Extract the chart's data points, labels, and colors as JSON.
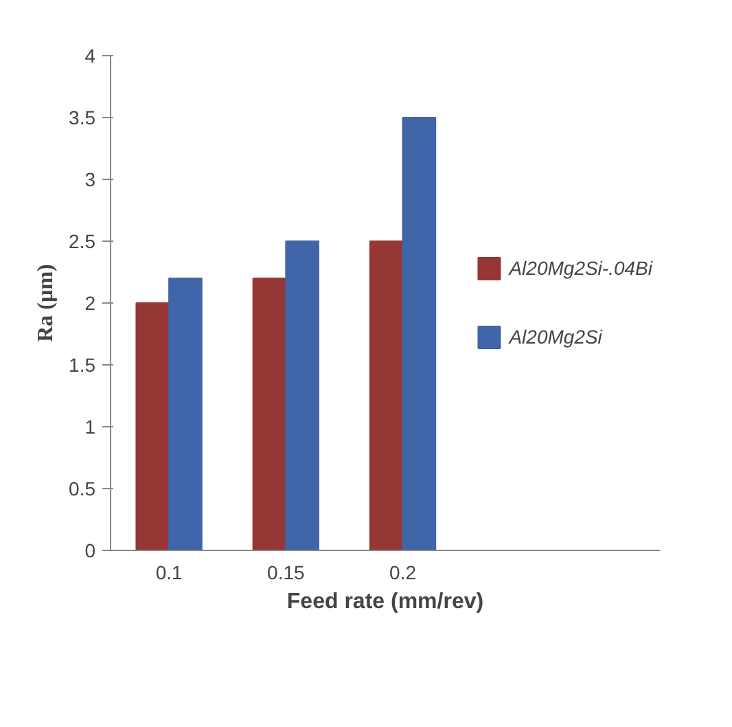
{
  "chart_data": {
    "type": "bar",
    "xlabel": "Feed rate (mm/rev)",
    "ylabel": "Ra (µm)",
    "categories": [
      "0.1",
      "0.15",
      "0.2"
    ],
    "series": [
      {
        "name": "Al20Mg2Si-.04Bi",
        "color": "#953735",
        "values": [
          2.0,
          2.2,
          2.5
        ]
      },
      {
        "name": "Al20Mg2Si",
        "color": "#4065a8",
        "values": [
          2.2,
          2.5,
          3.5
        ]
      }
    ],
    "ylim": [
      0,
      4
    ],
    "yticks": [
      0,
      0.5,
      1,
      1.5,
      2,
      2.5,
      3,
      3.5,
      4
    ],
    "legend": "right"
  }
}
